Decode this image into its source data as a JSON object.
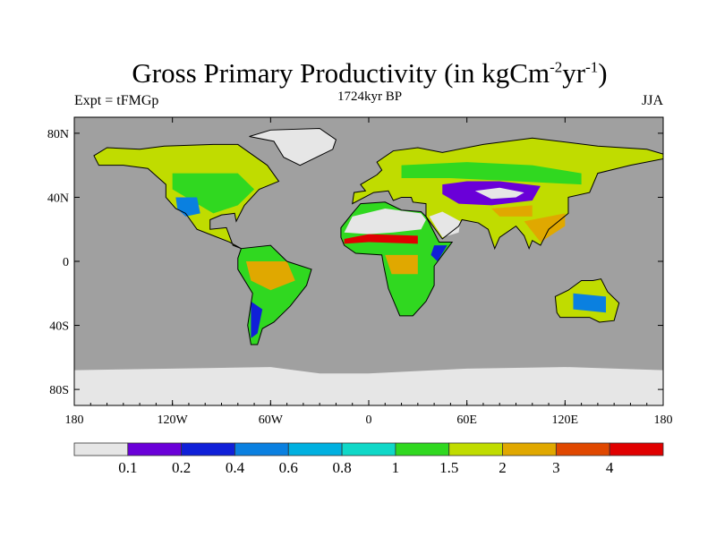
{
  "chart_data": {
    "type": "heatmap",
    "title": "Gross Primary Productivity (in kgCm",
    "title_units": {
      "base": "Gross Primary Productivity (in kgCm",
      "exp1": "-2",
      "mid": "yr",
      "exp2": "-1",
      "end": ")"
    },
    "subtitle": "1724kyr BP",
    "left_label": "Expt = tFMGp",
    "right_label": "JJA",
    "projection": "cylindrical equidistant",
    "xlim": [
      -180,
      180
    ],
    "ylim": [
      -90,
      90
    ],
    "x_ticks": [
      {
        "value": -180,
        "label": "180"
      },
      {
        "value": -120,
        "label": "120W"
      },
      {
        "value": -60,
        "label": "60W"
      },
      {
        "value": 0,
        "label": "0"
      },
      {
        "value": 60,
        "label": "60E"
      },
      {
        "value": 120,
        "label": "120E"
      },
      {
        "value": 180,
        "label": "180"
      }
    ],
    "y_ticks": [
      {
        "value": 80,
        "label": "80N"
      },
      {
        "value": 40,
        "label": "40N"
      },
      {
        "value": 0,
        "label": "0"
      },
      {
        "value": -40,
        "label": "40S"
      },
      {
        "value": -80,
        "label": "80S"
      }
    ],
    "colorbar": {
      "levels": [
        "0.1",
        "0.2",
        "0.4",
        "0.6",
        "0.8",
        "1",
        "1.5",
        "2",
        "3",
        "4"
      ],
      "colors": [
        "#e6e6e6",
        "#6a00d8",
        "#1020d8",
        "#0a80e0",
        "#00b0e0",
        "#10d8c8",
        "#30d820",
        "#c0dc00",
        "#e0a800",
        "#e04800",
        "#e00000"
      ]
    },
    "ocean_color": "#a0a0a0"
  }
}
